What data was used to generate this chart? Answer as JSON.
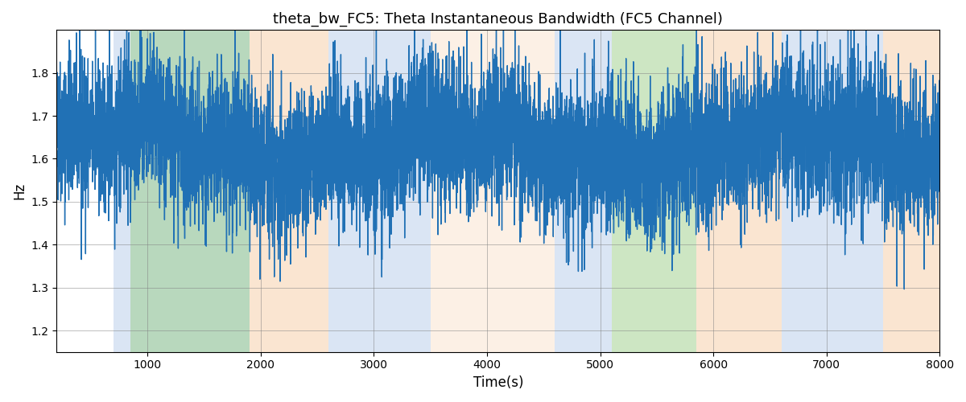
{
  "title": "theta_bw_FC5: Theta Instantaneous Bandwidth (FC5 Channel)",
  "xlabel": "Time(s)",
  "ylabel": "Hz",
  "xlim": [
    200,
    8000
  ],
  "ylim": [
    1.15,
    1.9
  ],
  "line_color": "#2171b5",
  "line_width": 1.0,
  "bg_regions": [
    {
      "xstart": 700,
      "xend": 1900,
      "color": "#aec6e8",
      "alpha": 0.45
    },
    {
      "xstart": 850,
      "xend": 1900,
      "color": "#90c97a",
      "alpha": 0.45
    },
    {
      "xstart": 1900,
      "xend": 2600,
      "color": "#f5c799",
      "alpha": 0.45
    },
    {
      "xstart": 2600,
      "xend": 3500,
      "color": "#aec6e8",
      "alpha": 0.45
    },
    {
      "xstart": 3500,
      "xend": 4600,
      "color": "#f5c799",
      "alpha": 0.25
    },
    {
      "xstart": 4600,
      "xend": 5100,
      "color": "#aec6e8",
      "alpha": 0.45
    },
    {
      "xstart": 5100,
      "xend": 5850,
      "color": "#90c97a",
      "alpha": 0.45
    },
    {
      "xstart": 5850,
      "xend": 6600,
      "color": "#f5c799",
      "alpha": 0.45
    },
    {
      "xstart": 6600,
      "xend": 7500,
      "color": "#aec6e8",
      "alpha": 0.45
    },
    {
      "xstart": 7500,
      "xend": 8000,
      "color": "#f5c799",
      "alpha": 0.45
    }
  ],
  "seed": 42,
  "n_points": 8000,
  "yticks": [
    1.2,
    1.3,
    1.4,
    1.5,
    1.6,
    1.7,
    1.8
  ],
  "xticks": [
    1000,
    2000,
    3000,
    4000,
    5000,
    6000,
    7000,
    8000
  ]
}
